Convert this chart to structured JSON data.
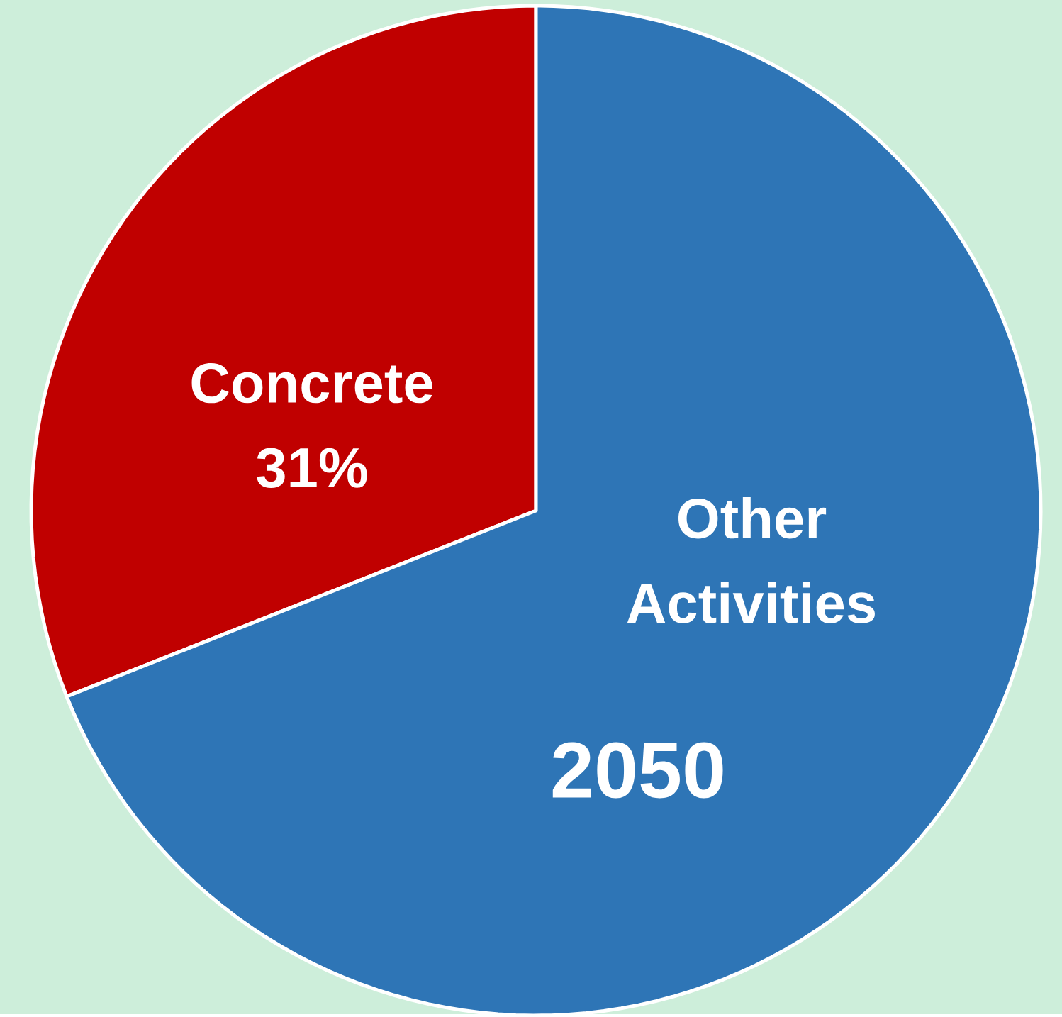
{
  "chart_data": {
    "type": "pie",
    "title": "2050",
    "categories": [
      "Concrete",
      "Other Activities"
    ],
    "values": [
      31,
      69
    ],
    "value_labels": [
      "31%",
      null
    ],
    "colors": [
      "#c00000",
      "#2e75b6"
    ]
  }
}
